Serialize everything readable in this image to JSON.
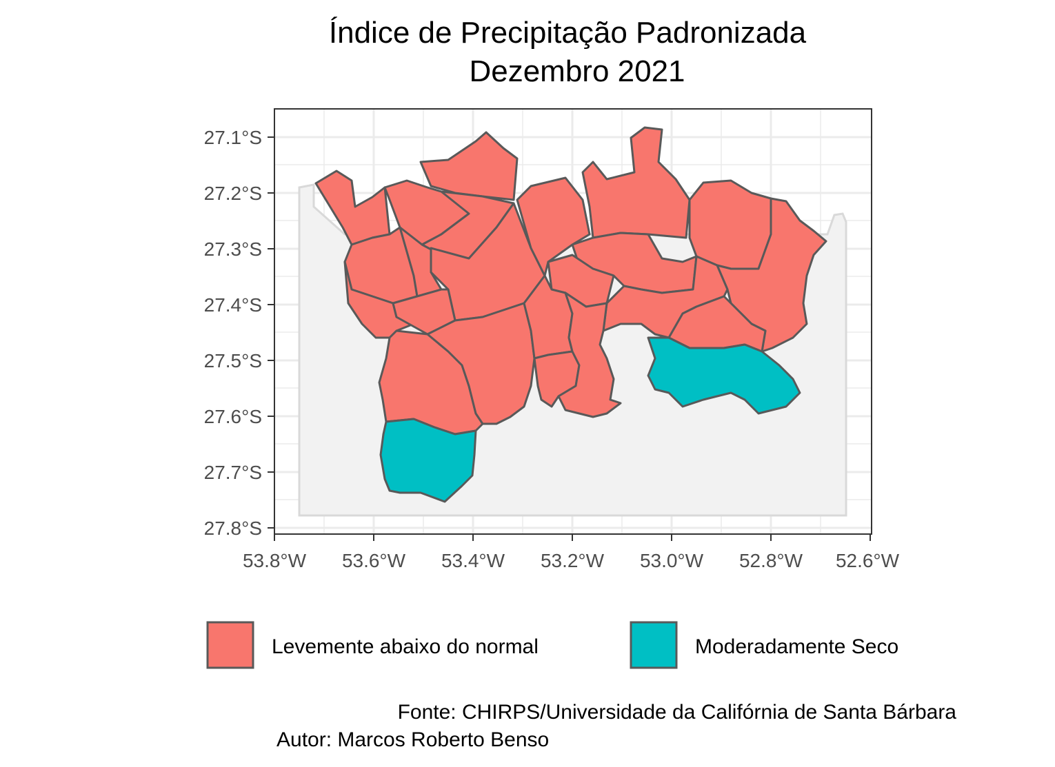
{
  "chart_data": {
    "type": "map",
    "title": "Índice de Precipitação Padronizada",
    "subtitle": "Dezembro 2021",
    "x_ticks": [
      "53.8°W",
      "53.6°W",
      "53.4°W",
      "53.2°W",
      "53.0°W",
      "52.8°W",
      "52.6°W"
    ],
    "y_ticks": [
      "27.1°S",
      "27.2°S",
      "27.3°S",
      "27.4°S",
      "27.5°S",
      "27.6°S",
      "27.7°S",
      "27.8°S"
    ],
    "xlim": [
      -53.8,
      -52.6
    ],
    "ylim": [
      -27.8,
      -27.05
    ],
    "grid": true,
    "legend_position": "bottom",
    "categories": [
      {
        "label": "Levemente abaixo do normal",
        "color": "#F8766D"
      },
      {
        "label": "Moderadamente Seco",
        "color": "#00BFC4"
      }
    ],
    "background_region_color": "#f2f2f2"
  },
  "caption": {
    "source": "Fonte: CHIRPS/Universidade da Califórnia de Santa Bárbara",
    "author": "Autor: Marcos Roberto Benso"
  }
}
